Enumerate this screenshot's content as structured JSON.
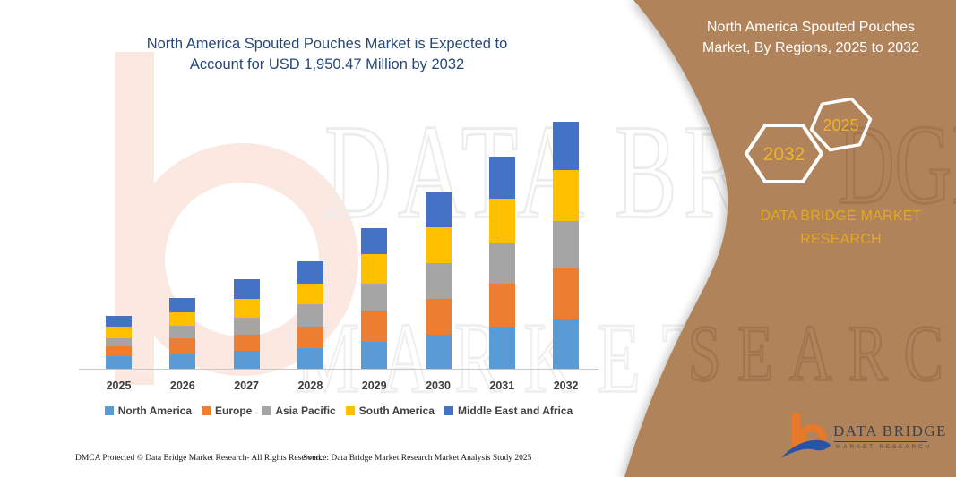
{
  "header": {
    "chart_title_line1": "North America Spouted Pouches Market is Expected to",
    "chart_title_line2": "Account for USD 1,950.47 Million by 2032"
  },
  "chart_data": {
    "type": "bar",
    "stacked": true,
    "title": "North America Spouted Pouches Market is Expected to Account for USD 1,950.47 Million by 2032",
    "unit": "USD Million",
    "categories": [
      "2025",
      "2026",
      "2027",
      "2028",
      "2029",
      "2030",
      "2031",
      "2032"
    ],
    "series": [
      {
        "name": "North America",
        "color": "#5B9BD5",
        "values": [
          99,
          113,
          141,
          165,
          212,
          269,
          332,
          389
        ]
      },
      {
        "name": "Europe",
        "color": "#ED7D31",
        "values": [
          78,
          127,
          127,
          166,
          247,
          283,
          339,
          403
        ]
      },
      {
        "name": "Asia Pacific",
        "color": "#A5A5A5",
        "values": [
          64,
          99,
          134,
          177,
          212,
          283,
          325,
          375
        ]
      },
      {
        "name": "South America",
        "color": "#FFC000",
        "values": [
          92,
          106,
          148,
          163,
          233,
          283,
          346,
          403
        ]
      },
      {
        "name": "Middle East and Africa",
        "color": "#4472C4",
        "values": [
          85,
          113,
          155,
          177,
          205,
          276,
          333,
          380.47
        ]
      }
    ],
    "totals": [
      418,
      558,
      705,
      848,
      1109,
      1394,
      1675,
      1950.47
    ],
    "stated_2032_total": 1950.47,
    "y_axis_visible": false,
    "grid": false,
    "legend_position": "bottom"
  },
  "panel": {
    "bg_color": "#B1835A",
    "title_line1": "North America Spouted Pouches",
    "title_line2": "Market, By Regions, 2025 to 2032",
    "hex_large_year": "2032",
    "hex_small_year": "2025",
    "hex_text_color": "#EFB22C",
    "brand_text": "DATA BRIDGE MARKET RESEARCH",
    "brand_color": "#E4A722"
  },
  "footer": {
    "left": "DMCA Protected © Data Bridge Market Research-  All Rights Reserved.",
    "source": "Source: Data Bridge Market Research  Market Analysis Study 2025"
  },
  "logo": {
    "name": "DATA BRIDGE",
    "subtitle": "MARKET RESEARCH"
  },
  "watermarks": {
    "row1": "DATA BRIDGE",
    "row2": "MARKET RE",
    "panel1": "DGE",
    "panel2": "SEARCH"
  }
}
